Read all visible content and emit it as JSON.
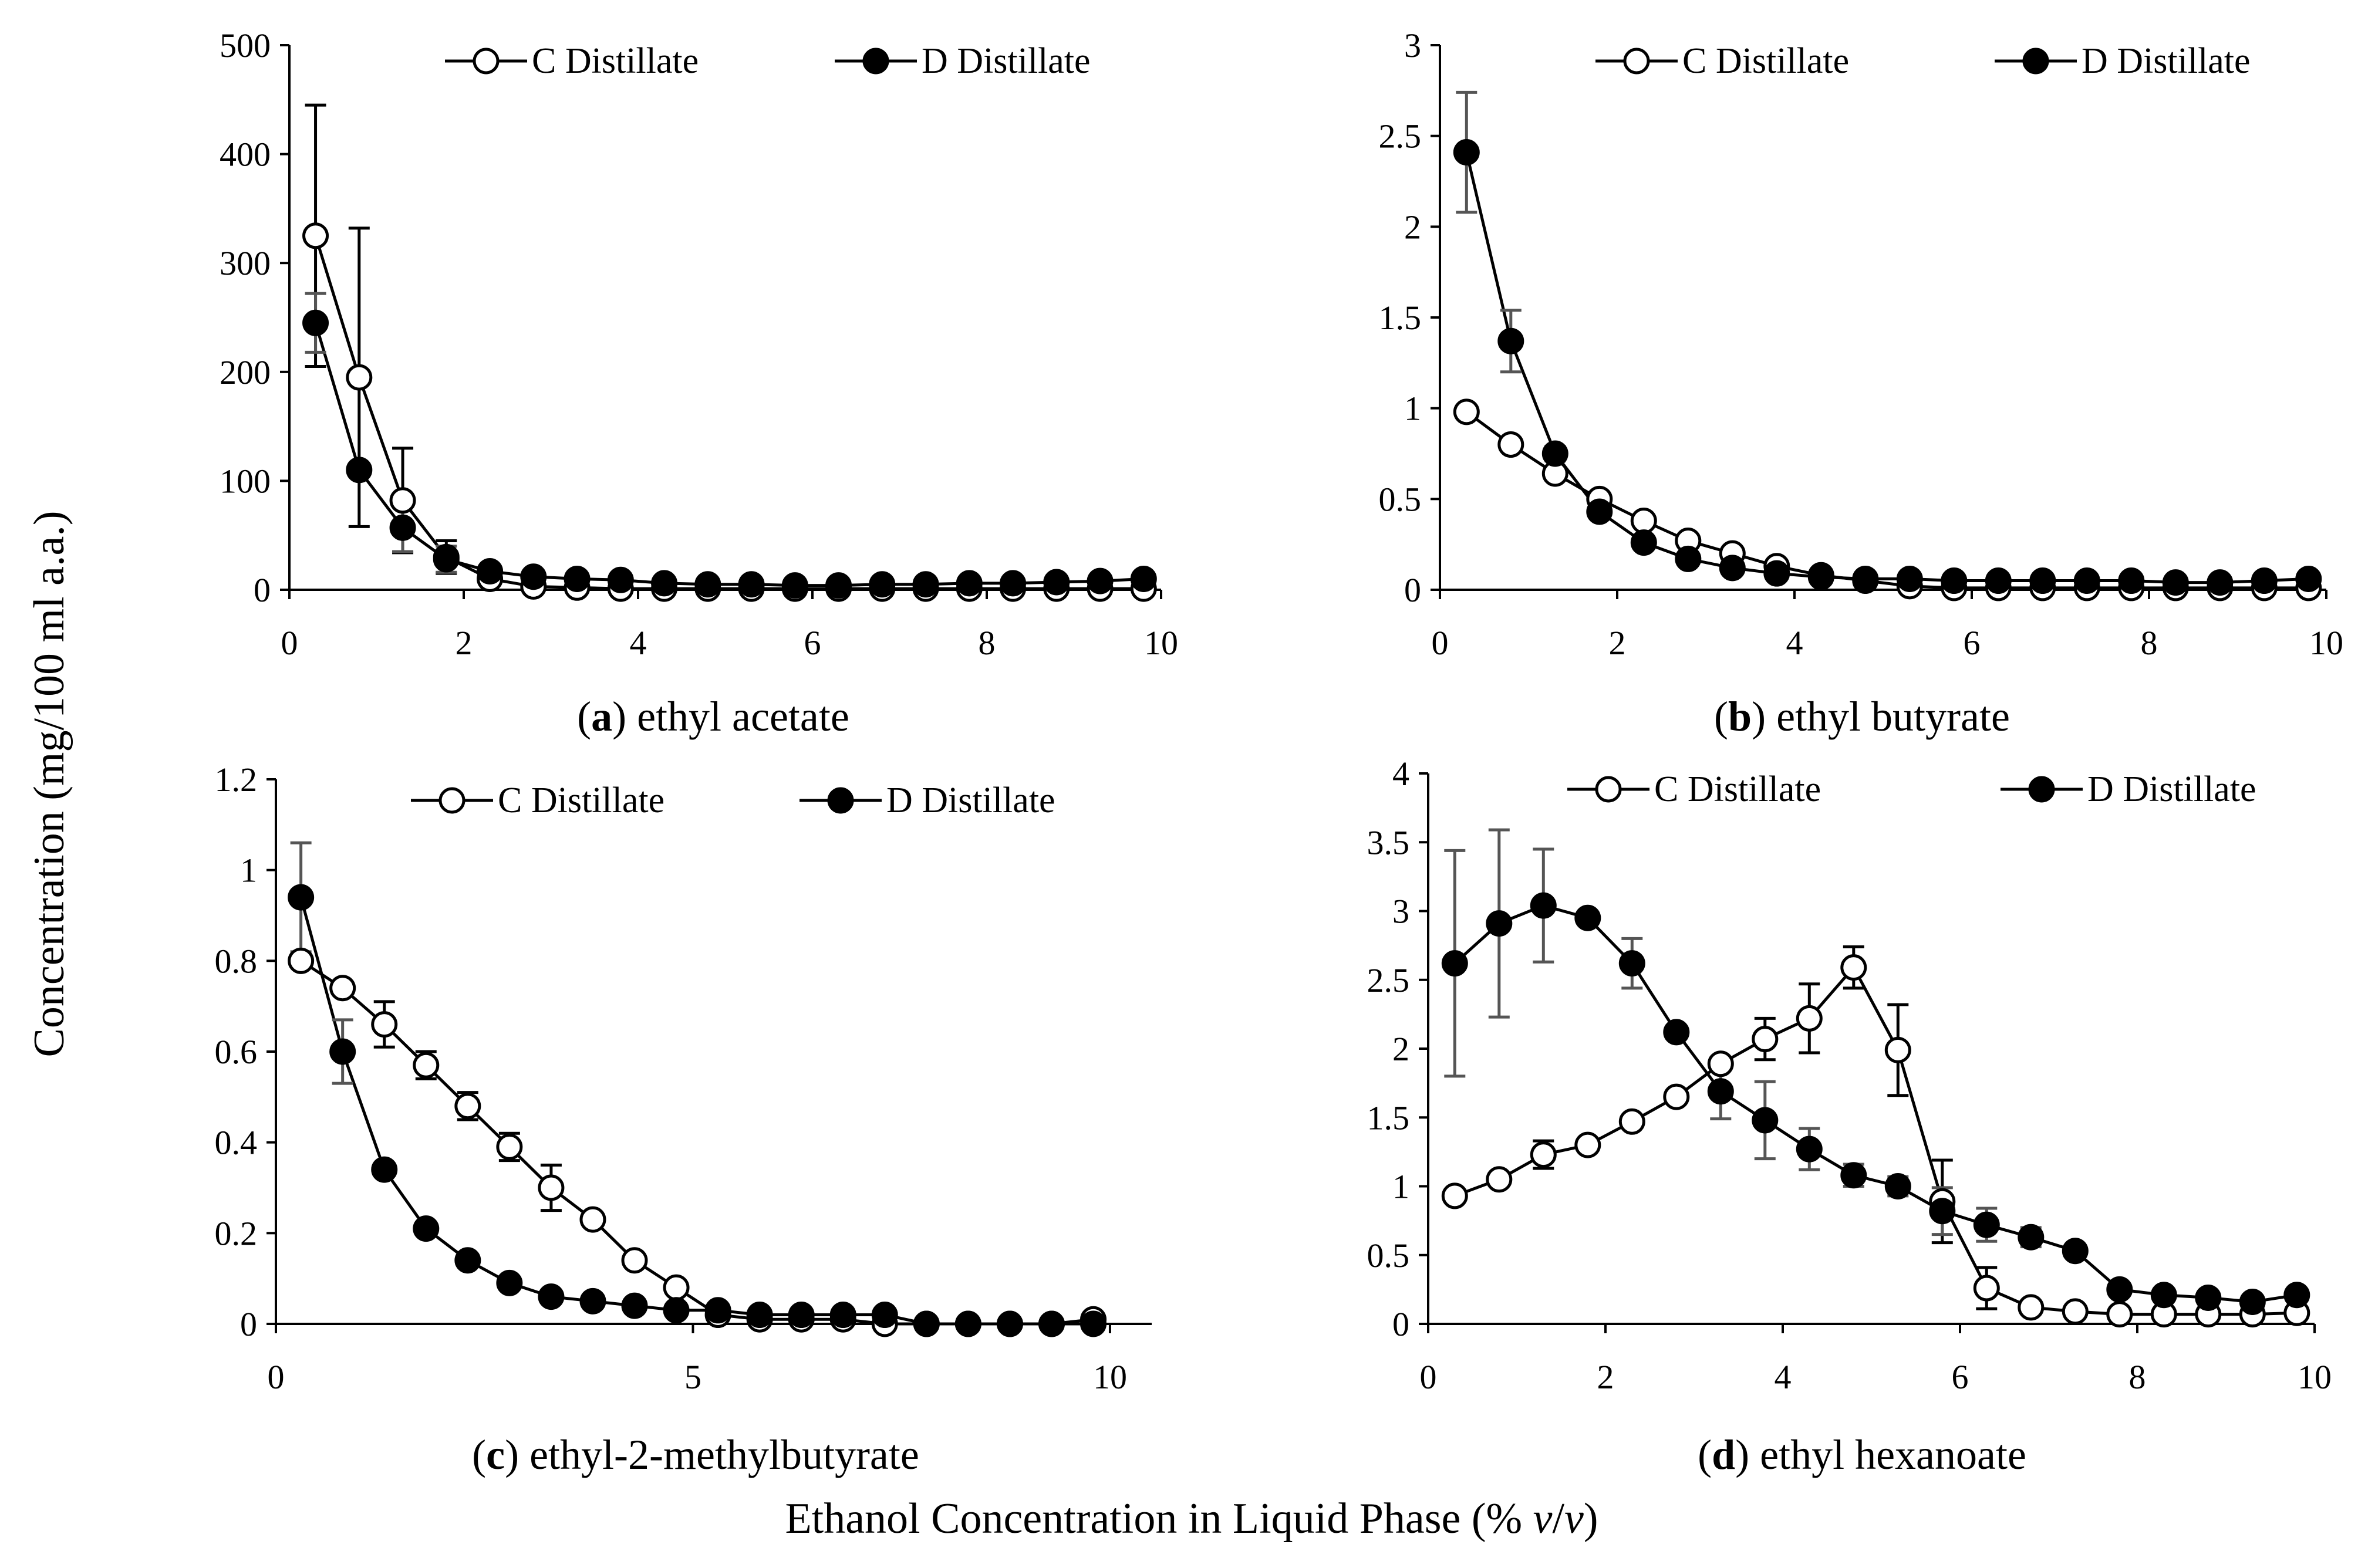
{
  "figure": {
    "ylabel": "Concentration (mg/100 ml a.a.)",
    "xlabel_prefix": "Ethanol Concentration in Liquid Phase (% ",
    "xlabel_var1": "v",
    "xlabel_slash": "/",
    "xlabel_var2": "v",
    "xlabel_suffix": ")"
  },
  "chart_data": [
    {
      "type": "line",
      "panel_letter": "a",
      "title": "ethyl acetate",
      "ylim": [
        0,
        500
      ],
      "yticks": [
        0,
        100,
        200,
        300,
        400,
        500
      ],
      "ytick_labels": [
        "0",
        "100",
        "200",
        "300",
        "400",
        "500"
      ],
      "xlim": [
        0,
        10
      ],
      "xticks": [
        0,
        2,
        4,
        6,
        8,
        10
      ],
      "xtick_labels": [
        "0",
        "2",
        "4",
        "6",
        "8",
        "10"
      ],
      "legend_position": "top",
      "series": [
        {
          "name": "C Distillate",
          "marker": "open-circle",
          "x": [
            0.3,
            0.8,
            1.3,
            1.8,
            2.3,
            2.8,
            3.3,
            3.8,
            4.3,
            4.8,
            5.3,
            5.8,
            6.3,
            6.8,
            7.3,
            7.8,
            8.3,
            8.8,
            9.3,
            9.8
          ],
          "values": [
            325,
            195,
            82,
            30,
            10,
            3,
            2,
            1,
            1,
            1,
            1,
            1,
            1,
            1,
            1,
            1,
            1,
            1,
            1,
            1
          ],
          "errors": [
            120,
            137,
            48,
            15,
            3,
            0,
            0,
            0,
            0,
            0,
            0,
            0,
            0,
            0,
            0,
            0,
            0,
            0,
            0,
            0
          ]
        },
        {
          "name": "D Distillate",
          "marker": "filled-circle",
          "x": [
            0.3,
            0.8,
            1.3,
            1.8,
            2.3,
            2.8,
            3.3,
            3.8,
            4.3,
            4.8,
            5.3,
            5.8,
            6.3,
            6.8,
            7.3,
            7.8,
            8.3,
            8.8,
            9.3,
            9.8
          ],
          "values": [
            245,
            110,
            57,
            28,
            17,
            12,
            10,
            9,
            6,
            5,
            5,
            4,
            4,
            5,
            5,
            6,
            6,
            7,
            8,
            10
          ],
          "errors": [
            27,
            0,
            22,
            12,
            4,
            2,
            0,
            0,
            0,
            0,
            0,
            0,
            0,
            0,
            0,
            0,
            0,
            0,
            0,
            0
          ]
        }
      ]
    },
    {
      "type": "line",
      "panel_letter": "b",
      "title": "ethyl butyrate",
      "ylim": [
        0,
        3
      ],
      "yticks": [
        0,
        0.5,
        1,
        1.5,
        2,
        2.5,
        3
      ],
      "ytick_labels": [
        "0",
        "0.5",
        "1",
        "1.5",
        "2",
        "2.5",
        "3"
      ],
      "xlim": [
        0,
        10
      ],
      "xticks": [
        0,
        2,
        4,
        6,
        8,
        10
      ],
      "xtick_labels": [
        "0",
        "2",
        "4",
        "6",
        "8",
        "10"
      ],
      "legend_position": "top",
      "series": [
        {
          "name": "C Distillate",
          "marker": "open-circle",
          "x": [
            0.3,
            0.8,
            1.3,
            1.8,
            2.3,
            2.8,
            3.3,
            3.8,
            4.3,
            4.8,
            5.3,
            5.8,
            6.3,
            6.8,
            7.3,
            7.8,
            8.3,
            8.8,
            9.3,
            9.8
          ],
          "values": [
            0.98,
            0.8,
            0.64,
            0.5,
            0.38,
            0.27,
            0.2,
            0.13,
            0.08,
            0.05,
            0.02,
            0.01,
            0.01,
            0.01,
            0.01,
            0.01,
            0.01,
            0.01,
            0.01,
            0.01
          ],
          "errors": [
            0,
            0,
            0,
            0,
            0,
            0,
            0,
            0,
            0,
            0,
            0,
            0,
            0,
            0,
            0,
            0,
            0,
            0,
            0,
            0
          ]
        },
        {
          "name": "D Distillate",
          "marker": "filled-circle",
          "x": [
            0.3,
            0.8,
            1.3,
            1.8,
            2.3,
            2.8,
            3.3,
            3.8,
            4.3,
            4.8,
            5.3,
            5.8,
            6.3,
            6.8,
            7.3,
            7.8,
            8.3,
            8.8,
            9.3,
            9.8
          ],
          "values": [
            2.41,
            1.37,
            0.75,
            0.43,
            0.26,
            0.17,
            0.12,
            0.09,
            0.07,
            0.06,
            0.06,
            0.05,
            0.05,
            0.05,
            0.05,
            0.05,
            0.04,
            0.04,
            0.05,
            0.06
          ],
          "errors": [
            0.33,
            0.17,
            0.04,
            0.03,
            0,
            0,
            0,
            0,
            0,
            0,
            0,
            0,
            0,
            0,
            0,
            0,
            0,
            0,
            0,
            0
          ]
        }
      ]
    },
    {
      "type": "line",
      "panel_letter": "c",
      "title": "ethyl-2-methylbutyrate",
      "ylim": [
        0,
        1.2
      ],
      "yticks": [
        0,
        0.2,
        0.4,
        0.6,
        0.8,
        1,
        1.2
      ],
      "ytick_labels": [
        "0",
        "0.2",
        "0.4",
        "0.6",
        "0.8",
        "1",
        "1.2"
      ],
      "xlim": [
        0,
        10.5
      ],
      "xticks": [
        0,
        5,
        10
      ],
      "xtick_labels": [
        "0",
        "5",
        "10"
      ],
      "legend_position": "top",
      "series": [
        {
          "name": "C Distillate",
          "marker": "open-circle",
          "x": [
            0.3,
            0.8,
            1.3,
            1.8,
            2.3,
            2.8,
            3.3,
            3.8,
            4.3,
            4.8,
            5.3,
            5.8,
            6.3,
            6.8,
            7.3,
            7.8,
            8.3,
            8.8,
            9.3,
            9.8
          ],
          "values": [
            0.8,
            0.74,
            0.66,
            0.57,
            0.48,
            0.39,
            0.3,
            0.23,
            0.14,
            0.08,
            0.02,
            0.01,
            0.01,
            0.01,
            0.0,
            0.0,
            0.0,
            0.0,
            0.0,
            0.01
          ],
          "errors": [
            0,
            0,
            0.05,
            0.03,
            0.03,
            0.03,
            0.05,
            0,
            0,
            0,
            0,
            0,
            0,
            0,
            0,
            0,
            0,
            0,
            0,
            0
          ]
        },
        {
          "name": "D Distillate",
          "marker": "filled-circle",
          "x": [
            0.3,
            0.8,
            1.3,
            1.8,
            2.3,
            2.8,
            3.3,
            3.8,
            4.3,
            4.8,
            5.3,
            5.8,
            6.3,
            6.8,
            7.3,
            7.8,
            8.3,
            8.8,
            9.3,
            9.8
          ],
          "values": [
            0.94,
            0.6,
            0.34,
            0.21,
            0.14,
            0.09,
            0.06,
            0.05,
            0.04,
            0.03,
            0.03,
            0.02,
            0.02,
            0.02,
            0.02,
            0.0,
            0.0,
            0.0,
            0.0,
            0.0
          ],
          "errors": [
            0.12,
            0.07,
            0,
            0,
            0,
            0,
            0,
            0,
            0,
            0,
            0,
            0,
            0,
            0,
            0,
            0,
            0,
            0,
            0,
            0
          ]
        }
      ]
    },
    {
      "type": "line",
      "panel_letter": "d",
      "title": "ethyl hexanoate",
      "ylim": [
        0,
        4
      ],
      "yticks": [
        0,
        0.5,
        1,
        1.5,
        2,
        2.5,
        3,
        3.5,
        4
      ],
      "ytick_labels": [
        "0",
        "0.5",
        "1",
        "1.5",
        "2",
        "2.5",
        "3",
        "3.5",
        "4"
      ],
      "xlim": [
        0,
        10
      ],
      "xticks": [
        0,
        2,
        4,
        6,
        8,
        10
      ],
      "xtick_labels": [
        "0",
        "2",
        "4",
        "6",
        "8",
        "10"
      ],
      "legend_position": "top",
      "series": [
        {
          "name": "C Distillate",
          "marker": "open-circle",
          "x": [
            0.3,
            0.8,
            1.3,
            1.8,
            2.3,
            2.8,
            3.3,
            3.8,
            4.3,
            4.8,
            5.3,
            5.8,
            6.3,
            6.8,
            7.3,
            7.8,
            8.3,
            8.8,
            9.3,
            9.8
          ],
          "values": [
            0.93,
            1.05,
            1.23,
            1.3,
            1.47,
            1.65,
            1.89,
            2.07,
            2.22,
            2.59,
            1.99,
            0.89,
            0.26,
            0.12,
            0.09,
            0.07,
            0.07,
            0.07,
            0.07,
            0.08
          ],
          "errors": [
            0,
            0,
            0.1,
            0,
            0,
            0,
            0,
            0.15,
            0.25,
            0.15,
            0.33,
            0.3,
            0.15,
            0,
            0,
            0,
            0,
            0,
            0,
            0
          ]
        },
        {
          "name": "D Distillate",
          "marker": "filled-circle",
          "x": [
            0.3,
            0.8,
            1.3,
            1.8,
            2.3,
            2.8,
            3.3,
            3.8,
            4.3,
            4.8,
            5.3,
            5.8,
            6.3,
            6.8,
            7.3,
            7.8,
            8.3,
            8.8,
            9.3,
            9.8
          ],
          "values": [
            2.62,
            2.91,
            3.04,
            2.95,
            2.62,
            2.12,
            1.69,
            1.48,
            1.27,
            1.08,
            1.0,
            0.82,
            0.72,
            0.63,
            0.53,
            0.25,
            0.21,
            0.19,
            0.16,
            0.21
          ],
          "errors": [
            0.82,
            0.68,
            0.41,
            0,
            0.18,
            0,
            0.2,
            0.28,
            0.15,
            0.08,
            0.07,
            0.17,
            0.12,
            0.07,
            0,
            0,
            0,
            0,
            0,
            0
          ]
        }
      ]
    }
  ]
}
